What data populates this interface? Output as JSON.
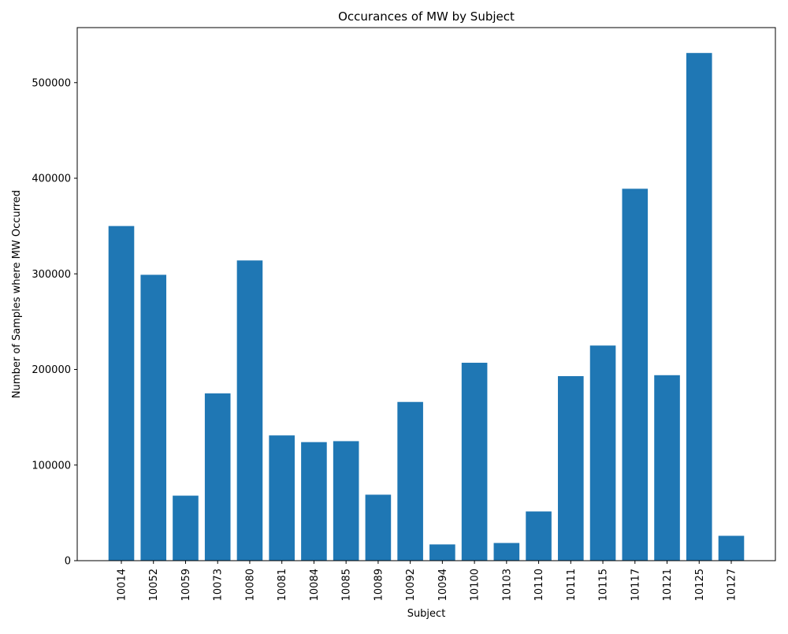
{
  "chart_data": {
    "type": "bar",
    "title": "Occurances of MW by Subject",
    "xlabel": "Subject",
    "ylabel": "Number of Samples where MW Occurred",
    "categories": [
      "10014",
      "10052",
      "10059",
      "10073",
      "10080",
      "10081",
      "10084",
      "10085",
      "10089",
      "10092",
      "10094",
      "10100",
      "10103",
      "10110",
      "10111",
      "10115",
      "10117",
      "10121",
      "10125",
      "10127"
    ],
    "values": [
      350000,
      299000,
      68000,
      175000,
      314000,
      131000,
      124000,
      125000,
      69000,
      166000,
      17000,
      207000,
      18500,
      51500,
      193000,
      225000,
      389000,
      194000,
      531000,
      26000
    ],
    "ylim": [
      0,
      557550
    ],
    "yticks": [
      0,
      100000,
      200000,
      300000,
      400000,
      500000
    ],
    "ytick_labels": [
      "0",
      "100000",
      "200000",
      "300000",
      "400000",
      "500000"
    ],
    "bar_color": "#1f77b4",
    "grid": false,
    "legend": "none"
  }
}
